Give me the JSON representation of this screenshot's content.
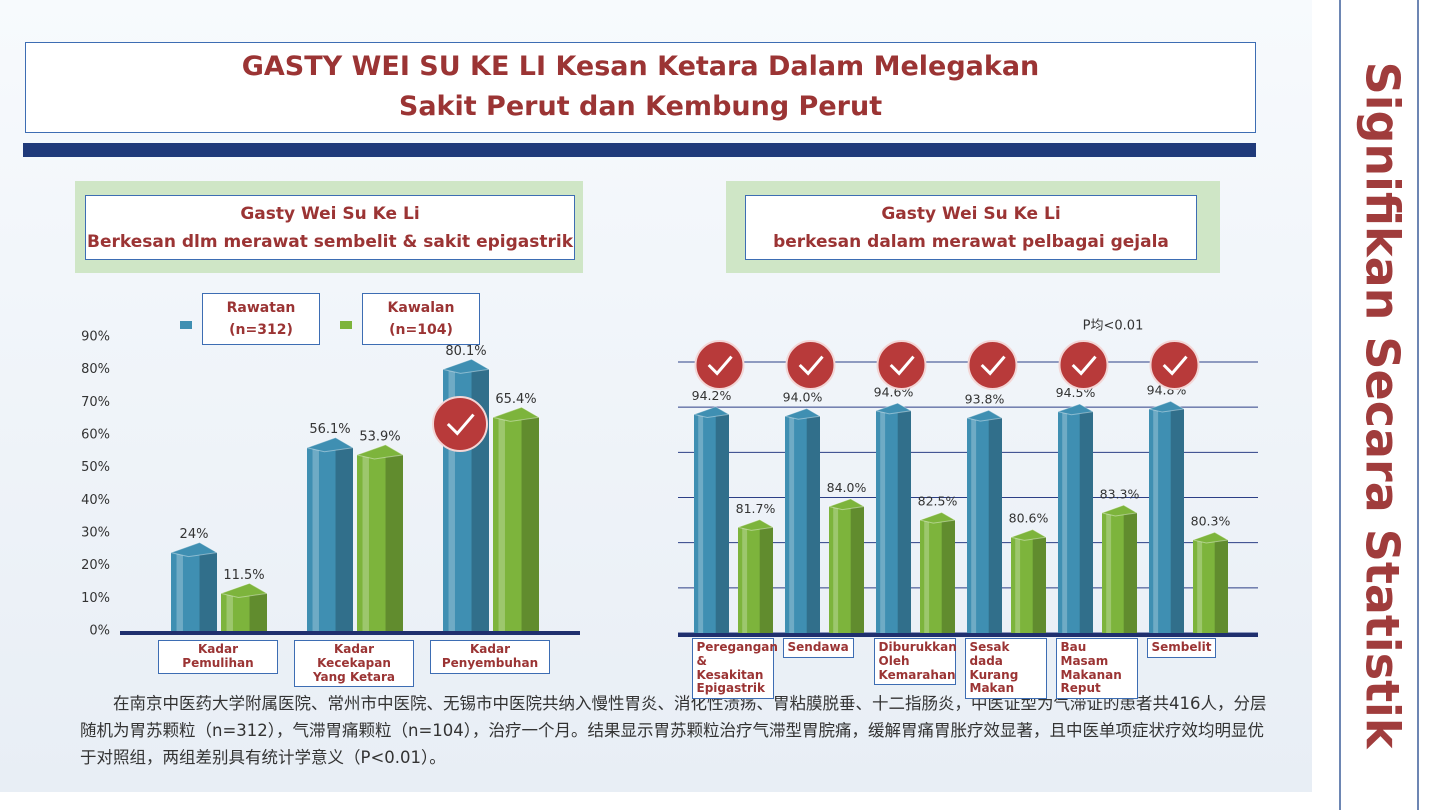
{
  "title_lines": [
    "GASTY WEI SU KE LI Kesan Ketara Dalam Melegakan",
    "Sakit Perut dan Kembung Perut"
  ],
  "side_title": "Signifikan Secara Statistik",
  "note": "在南京中医药大学附属医院、常州市中医院、无锡市中医院共纳入慢性胃炎、消化性溃疡、胃粘膜脱垂、十二指肠炎，中医证型为气滞证的患者共416人，分层随机为胃苏颗粒（n=312），气滞胃痛颗粒（n=104），治疗一个月。结果显示胃苏颗粒治疗气滞型胃脘痛，缓解胃痛胃胀疗效显著，且中医单项症状疗效均明显优于对照组，两组差别具有统计学意义（P<0.01）。",
  "chart_data": [
    {
      "type": "bar",
      "title": "Gasty Wei Su Ke Li",
      "subtitle": "Berkesan dlm merawat sembelit & sakit epigastrik",
      "categories": [
        "Kadar Pemulihan",
        "Kadar Kecekapan Yang Ketara",
        "Kadar Penyembuhan"
      ],
      "series": [
        {
          "name": "Rawatan (n=312)",
          "color": "#3f8fb2",
          "values": [
            24,
            56.1,
            80.1
          ],
          "value_labels": [
            "24%",
            "56.1%",
            "80.1%"
          ]
        },
        {
          "name": "Kawalan (n=104)",
          "color": "#7db43c",
          "values": [
            11.5,
            53.9,
            65.4
          ],
          "value_labels": [
            "11.5%",
            "53.9%",
            "65.4%"
          ]
        }
      ],
      "ylim": [
        0,
        90
      ],
      "yticks": [
        {
          "value": 0,
          "label": "0%"
        },
        {
          "value": 10,
          "label": "10%"
        },
        {
          "value": 20,
          "label": "20%"
        },
        {
          "value": 30,
          "label": "30%"
        },
        {
          "value": 40,
          "label": "40%"
        },
        {
          "value": 50,
          "label": "50%"
        },
        {
          "value": 60,
          "label": "60%"
        },
        {
          "value": 70,
          "label": "70%"
        },
        {
          "value": 80,
          "label": "80%"
        },
        {
          "value": 90,
          "label": "90%"
        }
      ],
      "grid": false,
      "tick_labels": true,
      "legend": "top"
    },
    {
      "type": "bar",
      "title": "Gasty Wei Su Ke Li",
      "subtitle": "berkesan dalam merawat pelbagai gejala",
      "annotation": "P均<0.01",
      "categories": [
        "Peregangan & Kesakitan Epigastrik",
        "Sendawa",
        "Diburukkan Oleh Kemarahan",
        "Sesak dada Kurang Makan",
        "Bau Masam Makanan Reput",
        "Sembelit"
      ],
      "series": [
        {
          "color": "#3f8fb2",
          "values": [
            94.2,
            94.0,
            94.6,
            93.8,
            94.5,
            94.8
          ],
          "value_labels": [
            "94.2%",
            "94.0%",
            "94.6%",
            "93.8%",
            "94.5%",
            "94.8%"
          ]
        },
        {
          "color": "#7db43c",
          "values": [
            81.7,
            84.0,
            82.5,
            80.6,
            83.3,
            80.3
          ],
          "value_labels": [
            "81.7%",
            "84.0%",
            "82.5%",
            "80.6%",
            "83.3%",
            "80.3%"
          ]
        }
      ],
      "ylim": [
        70,
        100
      ],
      "yticks": [
        70,
        75,
        80,
        85,
        90,
        95,
        100
      ],
      "grid": true,
      "tick_labels": false
    }
  ]
}
